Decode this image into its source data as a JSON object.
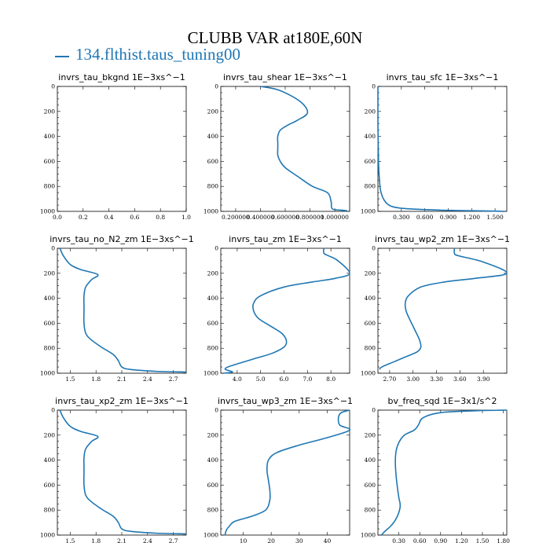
{
  "title": "CLUBB VAR at180E,60N",
  "legend": {
    "label": "134.flthist.taus_tuning00",
    "color": "#1f77b4"
  },
  "chart_data": [
    {
      "type": "line",
      "title": "invrs_tau_bkgnd   1E−3xs^−1",
      "xlim": [
        0,
        1.0
      ],
      "ylim": [
        1000,
        0
      ],
      "yinvert": true,
      "xticks": [
        0.0,
        0.2,
        0.4,
        0.6,
        0.8,
        1.0
      ],
      "xtick_labels": [
        "0.0",
        "0.2",
        "0.4",
        "0.6",
        "0.8",
        "1.0"
      ],
      "yticks": [
        0,
        200,
        400,
        600,
        800,
        1000
      ],
      "ytick_labels": [
        "0",
        "200",
        "400",
        "600",
        "800",
        "1000"
      ],
      "series": [
        {
          "x": [],
          "y": []
        }
      ]
    },
    {
      "type": "line",
      "title": "invrs_tau_shear   1E−3xs^−1",
      "xlim": [
        0.08,
        1.12
      ],
      "ylim": [
        1000,
        0
      ],
      "yinvert": true,
      "xticks": [
        0.2,
        0.4,
        0.6,
        0.8,
        1.0
      ],
      "xtick_labels": [
        "0.200000",
        "0.400000",
        "0.600000",
        "0.800000",
        "1.000000"
      ],
      "yticks": [
        0,
        200,
        400,
        600,
        800,
        1000
      ],
      "ytick_labels": [
        "0",
        "200",
        "400",
        "600",
        "800",
        "1000"
      ],
      "series": [
        {
          "x": [
            0.4,
            0.55,
            0.72,
            0.78,
            0.7,
            0.62,
            0.56,
            0.54,
            0.54,
            0.54,
            0.54,
            0.56,
            0.6,
            0.7,
            0.82,
            0.94,
            0.97,
            0.98,
            1.05,
            1.1
          ],
          "y": [
            0,
            30,
            120,
            210,
            270,
            310,
            350,
            400,
            450,
            500,
            550,
            600,
            650,
            720,
            800,
            850,
            920,
            980,
            990,
            995
          ]
        }
      ]
    },
    {
      "type": "line",
      "title": "invrs_tau_sfc   1E−3xs^−1",
      "xlim": [
        0,
        1.65
      ],
      "ylim": [
        1000,
        0
      ],
      "yinvert": true,
      "xticks": [
        0.3,
        0.6,
        0.9,
        1.2,
        1.5
      ],
      "xtick_labels": [
        "0.300",
        "0.600",
        "0.900",
        "1.200",
        "1.500"
      ],
      "yticks": [
        0,
        200,
        400,
        600,
        800,
        1000
      ],
      "ytick_labels": [
        "0",
        "200",
        "400",
        "600",
        "800",
        "1000"
      ],
      "series": [
        {
          "x": [
            0.0,
            0.0,
            0.005,
            0.01,
            0.02,
            0.03,
            0.05,
            0.08,
            0.12,
            0.2,
            0.4,
            0.8,
            1.2,
            1.5,
            1.62
          ],
          "y": [
            0,
            300,
            500,
            650,
            750,
            820,
            870,
            910,
            940,
            965,
            980,
            990,
            995,
            998,
            1000
          ]
        }
      ]
    },
    {
      "type": "line",
      "title": "invrs_tau_no_N2_zm   1E−3xs^−1",
      "xlim": [
        1.35,
        2.85
      ],
      "ylim": [
        1000,
        0
      ],
      "yinvert": true,
      "xticks": [
        1.5,
        1.8,
        2.1,
        2.4,
        2.7
      ],
      "xtick_labels": [
        "1.5",
        "1.8",
        "2.1",
        "2.4",
        "2.7"
      ],
      "yticks": [
        0,
        200,
        400,
        600,
        800,
        1000
      ],
      "ytick_labels": [
        "0",
        "200",
        "400",
        "600",
        "800",
        "1000"
      ],
      "series": [
        {
          "x": [
            1.38,
            1.42,
            1.5,
            1.62,
            1.82,
            1.75,
            1.68,
            1.66,
            1.66,
            1.66,
            1.66,
            1.68,
            1.74,
            1.86,
            2.0,
            2.06,
            2.1,
            2.2,
            2.5,
            2.85
          ],
          "y": [
            0,
            60,
            130,
            170,
            210,
            250,
            310,
            380,
            450,
            500,
            600,
            680,
            730,
            790,
            850,
            900,
            950,
            970,
            985,
            990
          ]
        }
      ]
    },
    {
      "type": "line",
      "title": "invrs_tau_zm   1E−3xs^−1",
      "xlim": [
        3.3,
        8.8
      ],
      "ylim": [
        1000,
        0
      ],
      "yinvert": true,
      "xticks": [
        4.0,
        5.0,
        6.0,
        7.0,
        8.0
      ],
      "xtick_labels": [
        "4.0",
        "5.0",
        "6.0",
        "7.0",
        "8.0"
      ],
      "yticks": [
        0,
        200,
        400,
        600,
        800,
        1000
      ],
      "ytick_labels": [
        "0",
        "200",
        "400",
        "600",
        "800",
        "1000"
      ],
      "series": [
        {
          "x": [
            7.7,
            7.7,
            7.9,
            8.3,
            8.8,
            8.2,
            7.2,
            6.0,
            5.0,
            4.7,
            4.7,
            4.9,
            5.4,
            5.9,
            6.1,
            6.0,
            5.5,
            4.8,
            4.1,
            3.6,
            3.5,
            3.8,
            3.4
          ],
          "y": [
            0,
            40,
            60,
            100,
            200,
            240,
            270,
            310,
            380,
            440,
            500,
            560,
            620,
            680,
            740,
            790,
            840,
            880,
            920,
            950,
            970,
            990,
            1000
          ]
        }
      ]
    },
    {
      "type": "line",
      "title": "invrs_tau_wp2_zm   1E−3xs^−1",
      "xlim": [
        2.55,
        4.2
      ],
      "ylim": [
        1000,
        0
      ],
      "yinvert": true,
      "xticks": [
        2.7,
        3.0,
        3.3,
        3.6,
        3.9
      ],
      "xtick_labels": [
        "2.70",
        "3.00",
        "3.30",
        "3.60",
        "3.90"
      ],
      "yticks": [
        0,
        200,
        400,
        600,
        800,
        1000
      ],
      "ytick_labels": [
        "0",
        "200",
        "400",
        "600",
        "800",
        "1000"
      ],
      "series": [
        {
          "x": [
            3.53,
            3.53,
            3.58,
            3.9,
            4.2,
            3.8,
            3.4,
            3.1,
            2.94,
            2.9,
            2.91,
            2.95,
            3.02,
            3.08,
            3.1,
            3.05,
            2.9,
            2.75,
            2.6,
            2.57
          ],
          "y": [
            0,
            40,
            60,
            110,
            200,
            240,
            270,
            310,
            380,
            440,
            500,
            560,
            650,
            730,
            790,
            830,
            870,
            910,
            950,
            970
          ]
        }
      ]
    },
    {
      "type": "line",
      "title": "invrs_tau_xp2_zm   1E−3xs^−1",
      "xlim": [
        1.35,
        2.85
      ],
      "ylim": [
        1000,
        0
      ],
      "yinvert": true,
      "xticks": [
        1.5,
        1.8,
        2.1,
        2.4,
        2.7
      ],
      "xtick_labels": [
        "1.5",
        "1.8",
        "2.1",
        "2.4",
        "2.7"
      ],
      "yticks": [
        0,
        200,
        400,
        600,
        800,
        1000
      ],
      "ytick_labels": [
        "0",
        "200",
        "400",
        "600",
        "800",
        "1000"
      ],
      "series": [
        {
          "x": [
            1.38,
            1.42,
            1.5,
            1.62,
            1.82,
            1.75,
            1.68,
            1.66,
            1.66,
            1.66,
            1.66,
            1.68,
            1.74,
            1.86,
            2.0,
            2.06,
            2.1,
            2.2,
            2.5,
            2.85
          ],
          "y": [
            0,
            60,
            130,
            170,
            210,
            250,
            310,
            380,
            450,
            500,
            600,
            680,
            730,
            790,
            850,
            900,
            950,
            970,
            985,
            990
          ]
        }
      ]
    },
    {
      "type": "line",
      "title": "invrs_tau_wp3_zm   1E−3xs^−1",
      "xlim": [
        2,
        48
      ],
      "ylim": [
        1000,
        0
      ],
      "yinvert": true,
      "xticks": [
        10,
        20,
        30,
        40
      ],
      "xtick_labels": [
        "10",
        "20",
        "30",
        "40"
      ],
      "yticks": [
        0,
        200,
        400,
        600,
        800,
        1000
      ],
      "ytick_labels": [
        "0",
        "200",
        "400",
        "600",
        "800",
        "1000"
      ],
      "series": [
        {
          "x": [
            48,
            45,
            44,
            44.5,
            48,
            40,
            30,
            22,
            19,
            18.5,
            19,
            19.5,
            19.5,
            18,
            13,
            7,
            5,
            4,
            3.5
          ],
          "y": [
            0,
            20,
            60,
            120,
            160,
            220,
            280,
            340,
            400,
            480,
            560,
            640,
            720,
            800,
            850,
            890,
            930,
            960,
            1000
          ]
        }
      ]
    },
    {
      "type": "line",
      "title": "bv_freq_sqd   1E−3x1/s^2",
      "xlim": [
        0,
        1.85
      ],
      "ylim": [
        1000,
        0
      ],
      "yinvert": true,
      "xticks": [
        0.3,
        0.6,
        0.9,
        1.2,
        1.5,
        1.8
      ],
      "xtick_labels": [
        "0.30",
        "0.60",
        "0.90",
        "1.20",
        "1.50",
        "1.80"
      ],
      "yticks": [
        0,
        200,
        400,
        600,
        800,
        1000
      ],
      "ytick_labels": [
        "0",
        "200",
        "400",
        "600",
        "800",
        "1000"
      ],
      "series": [
        {
          "x": [
            1.85,
            1.4,
            0.9,
            0.65,
            0.58,
            0.52,
            0.38,
            0.3,
            0.26,
            0.25,
            0.26,
            0.28,
            0.3,
            0.32,
            0.3,
            0.25,
            0.18,
            0.1,
            0.05
          ],
          "y": [
            0,
            5,
            20,
            60,
            120,
            160,
            200,
            260,
            330,
            420,
            520,
            620,
            700,
            760,
            820,
            880,
            930,
            970,
            1000
          ]
        }
      ]
    }
  ]
}
